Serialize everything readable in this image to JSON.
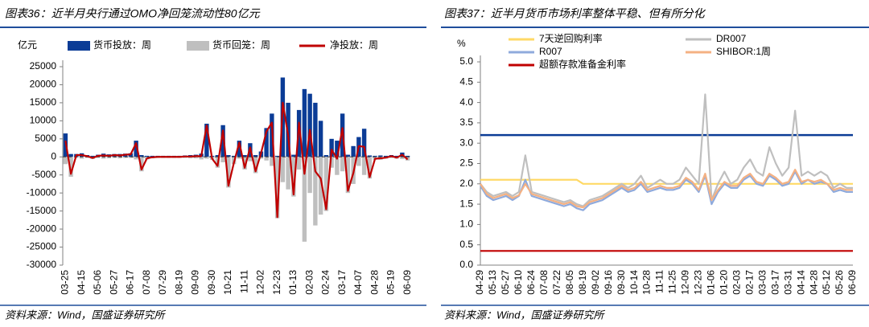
{
  "chart_data": [
    {
      "type": "bar",
      "title": "图表36：近半月央行通过OMO净回笼流动性80亿元",
      "source": "资料来源：Wind，国盛证券研究所",
      "y_label": "亿元",
      "categories": [
        "03-25",
        null,
        null,
        "04-15",
        null,
        null,
        "05-06",
        null,
        null,
        "05-27",
        null,
        null,
        "06-17",
        null,
        null,
        "07-08",
        null,
        null,
        "07-29",
        null,
        null,
        "08-19",
        null,
        null,
        "09-09",
        null,
        null,
        "09-30",
        null,
        null,
        "10-21",
        null,
        null,
        "11-11",
        null,
        null,
        "12-02",
        null,
        null,
        "12-23",
        null,
        null,
        "01-13",
        null,
        null,
        "02-03",
        null,
        null,
        "02-24",
        null,
        null,
        "03-17",
        null,
        null,
        "04-07",
        null,
        null,
        "04-28",
        null,
        null,
        "05-19",
        null,
        null,
        "06-09"
      ],
      "ylim": [
        -30000,
        25000
      ],
      "yticks": [
        -30000,
        -25000,
        -20000,
        -15000,
        -10000,
        -5000,
        0,
        5000,
        10000,
        15000,
        20000,
        25000
      ],
      "series": [
        {
          "name": "货币投放：周",
          "type": "bar",
          "color": "#0b3c96",
          "values": [
            6500,
            800,
            800,
            1000,
            500,
            300,
            600,
            900,
            700,
            800,
            800,
            900,
            1000,
            4500,
            500,
            300,
            300,
            300,
            300,
            300,
            300,
            300,
            400,
            500,
            600,
            900,
            9200,
            300,
            500,
            8800,
            500,
            300,
            4500,
            500,
            3800,
            500,
            1500,
            8000,
            12000,
            300,
            22000,
            15000,
            600,
            13000,
            18800,
            17500,
            15000,
            10000,
            500,
            5000,
            4500,
            12000,
            600,
            3000,
            5500,
            7800,
            400,
            300,
            400,
            300,
            500,
            300,
            1200,
            300
          ]
        },
        {
          "name": "货币回笼：周",
          "type": "bar",
          "color": "#bfbfbf",
          "values": [
            -2000,
            -5500,
            -300,
            -500,
            -300,
            -600,
            -300,
            -500,
            -400,
            -300,
            -400,
            -300,
            -300,
            -700,
            -4000,
            -700,
            -400,
            -300,
            -300,
            -300,
            -300,
            -300,
            -300,
            -400,
            -400,
            -700,
            -500,
            -800,
            -3000,
            -1500,
            -8500,
            -2000,
            -500,
            -3500,
            -1200,
            -4500,
            -500,
            -1000,
            -2500,
            -17000,
            -7000,
            -9000,
            -11000,
            -3500,
            -23500,
            -10000,
            -19000,
            -16000,
            -15000,
            -3000,
            -5000,
            -4000,
            -10000,
            -7500,
            -2500,
            -5000,
            -6000,
            -800,
            -800,
            -500,
            -300,
            -500,
            -600,
            -1000
          ]
        },
        {
          "name": "净投放：周",
          "type": "line",
          "color": "#c00000",
          "values": [
            4500,
            -4700,
            500,
            500,
            200,
            -300,
            300,
            400,
            300,
            500,
            400,
            600,
            700,
            3800,
            -3500,
            -400,
            -100,
            0,
            0,
            0,
            0,
            0,
            100,
            100,
            200,
            200,
            8700,
            -500,
            -2500,
            7300,
            -8000,
            -1700,
            4000,
            -3000,
            2600,
            -4000,
            1000,
            7000,
            9500,
            -16700,
            15000,
            6000,
            -10400,
            9500,
            -4700,
            7500,
            -4000,
            -6000,
            -14500,
            2000,
            -500,
            8000,
            -9400,
            -4500,
            3000,
            2800,
            -5600,
            -500,
            -400,
            -200,
            200,
            -200,
            600,
            -700
          ]
        }
      ]
    },
    {
      "type": "line",
      "title": "图表37：近半月货币市场利率整体平稳、但有所分化",
      "source": "资料来源：Wind，国盛证券研究所",
      "y_label": "%",
      "categories": [
        "04-29",
        null,
        "05-13",
        null,
        "05-27",
        null,
        "06-10",
        null,
        "06-24",
        null,
        "07-08",
        null,
        "07-22",
        null,
        "08-05",
        null,
        "08-19",
        null,
        "09-02",
        null,
        "09-16",
        null,
        "09-30",
        null,
        "10-14",
        null,
        "10-28",
        null,
        "11-11",
        null,
        "11-25",
        null,
        "12-09",
        null,
        "12-23",
        null,
        "01-06",
        null,
        "01-20",
        null,
        "02-03",
        null,
        "02-17",
        null,
        "03-03",
        null,
        "03-17",
        null,
        "03-31",
        null,
        "04-14",
        null,
        "04-28",
        null,
        "05-12",
        null,
        "05-26",
        null,
        "06-09"
      ],
      "ylim": [
        0,
        5
      ],
      "yticks": [
        {
          "value": 0,
          "label": "0.0"
        },
        0.5,
        {
          "value": 1,
          "label": "1.0"
        },
        1.5,
        {
          "value": 2,
          "label": "2.0"
        },
        2.5,
        {
          "value": 3,
          "label": "3.0"
        },
        3.5,
        {
          "value": 4,
          "label": "4.0"
        },
        4.5,
        {
          "value": 5,
          "label": "5.0"
        }
      ],
      "hlines": [
        {
          "value": 3.2,
          "color": "#0b3c96"
        }
      ],
      "series": [
        {
          "name": "7天逆回购利率",
          "color": "#ffd966",
          "values": [
            2.1,
            2.1,
            2.1,
            2.1,
            2.1,
            2.1,
            2.1,
            2.1,
            2.1,
            2.1,
            2.1,
            2.1,
            2.1,
            2.1,
            2.1,
            2.1,
            2.0,
            2.0,
            2.0,
            2.0,
            2.0,
            2.0,
            2.0,
            2.0,
            2.0,
            2.0,
            2.0,
            2.0,
            2.0,
            2.0,
            2.0,
            2.0,
            2.0,
            2.0,
            2.0,
            2.0,
            2.0,
            2.0,
            2.0,
            2.0,
            2.0,
            2.0,
            2.0,
            2.0,
            2.0,
            2.0,
            2.0,
            2.0,
            2.0,
            2.0,
            2.0,
            2.0,
            2.0,
            2.0,
            2.0,
            2.0,
            2.0,
            2.0,
            2.0
          ]
        },
        {
          "name": "DR007",
          "color": "#bfbfbf",
          "values": [
            2.0,
            1.8,
            1.7,
            1.75,
            1.8,
            1.7,
            1.8,
            2.7,
            1.8,
            1.75,
            1.7,
            1.65,
            1.6,
            1.55,
            1.6,
            1.5,
            1.45,
            1.6,
            1.65,
            1.7,
            1.8,
            1.9,
            2.0,
            1.9,
            2.0,
            2.2,
            1.9,
            2.0,
            2.1,
            2.0,
            2.0,
            2.1,
            2.4,
            2.2,
            2.0,
            4.2,
            1.6,
            2.0,
            2.3,
            2.0,
            2.1,
            2.4,
            2.6,
            2.3,
            2.2,
            2.9,
            2.5,
            2.2,
            2.4,
            3.8,
            2.2,
            2.3,
            2.2,
            2.3,
            2.2,
            1.9,
            2.0,
            1.9,
            1.9
          ]
        },
        {
          "name": "R007",
          "color": "#8faadc",
          "values": [
            1.95,
            1.7,
            1.6,
            1.65,
            1.7,
            1.6,
            1.7,
            2.1,
            1.7,
            1.65,
            1.6,
            1.55,
            1.5,
            1.45,
            1.5,
            1.4,
            1.35,
            1.5,
            1.55,
            1.6,
            1.7,
            1.8,
            1.9,
            1.8,
            1.85,
            2.0,
            1.8,
            1.85,
            1.9,
            1.85,
            1.85,
            1.9,
            2.1,
            2.0,
            1.8,
            2.2,
            1.5,
            1.8,
            2.0,
            1.9,
            1.9,
            2.1,
            2.2,
            2.0,
            1.95,
            2.2,
            2.1,
            1.95,
            2.0,
            2.3,
            2.0,
            2.1,
            2.0,
            2.05,
            2.0,
            1.8,
            1.85,
            1.8,
            1.8
          ]
        },
        {
          "name": "SHIBOR:1周",
          "color": "#f4b183",
          "values": [
            2.0,
            1.75,
            1.65,
            1.7,
            1.75,
            1.65,
            1.72,
            2.0,
            1.75,
            1.7,
            1.65,
            1.6,
            1.55,
            1.5,
            1.55,
            1.45,
            1.42,
            1.55,
            1.6,
            1.65,
            1.75,
            1.85,
            1.95,
            1.85,
            1.9,
            2.05,
            1.85,
            1.9,
            1.95,
            1.9,
            1.9,
            1.95,
            2.15,
            2.05,
            1.85,
            2.25,
            1.6,
            1.85,
            2.05,
            1.95,
            1.95,
            2.15,
            2.25,
            2.05,
            2.0,
            2.25,
            2.15,
            2.0,
            2.05,
            2.35,
            2.05,
            2.1,
            2.05,
            2.1,
            2.0,
            1.85,
            1.9,
            1.85,
            1.85
          ]
        },
        {
          "name": "超额存款准备金利率",
          "color": "#c00000",
          "values": [
            0.35,
            0.35,
            0.35,
            0.35,
            0.35,
            0.35,
            0.35,
            0.35,
            0.35,
            0.35,
            0.35,
            0.35,
            0.35,
            0.35,
            0.35,
            0.35,
            0.35,
            0.35,
            0.35,
            0.35,
            0.35,
            0.35,
            0.35,
            0.35,
            0.35,
            0.35,
            0.35,
            0.35,
            0.35,
            0.35,
            0.35,
            0.35,
            0.35,
            0.35,
            0.35,
            0.35,
            0.35,
            0.35,
            0.35,
            0.35,
            0.35,
            0.35,
            0.35,
            0.35,
            0.35,
            0.35,
            0.35,
            0.35,
            0.35,
            0.35,
            0.35,
            0.35,
            0.35,
            0.35,
            0.35,
            0.35,
            0.35,
            0.35,
            0.35
          ]
        }
      ]
    }
  ]
}
